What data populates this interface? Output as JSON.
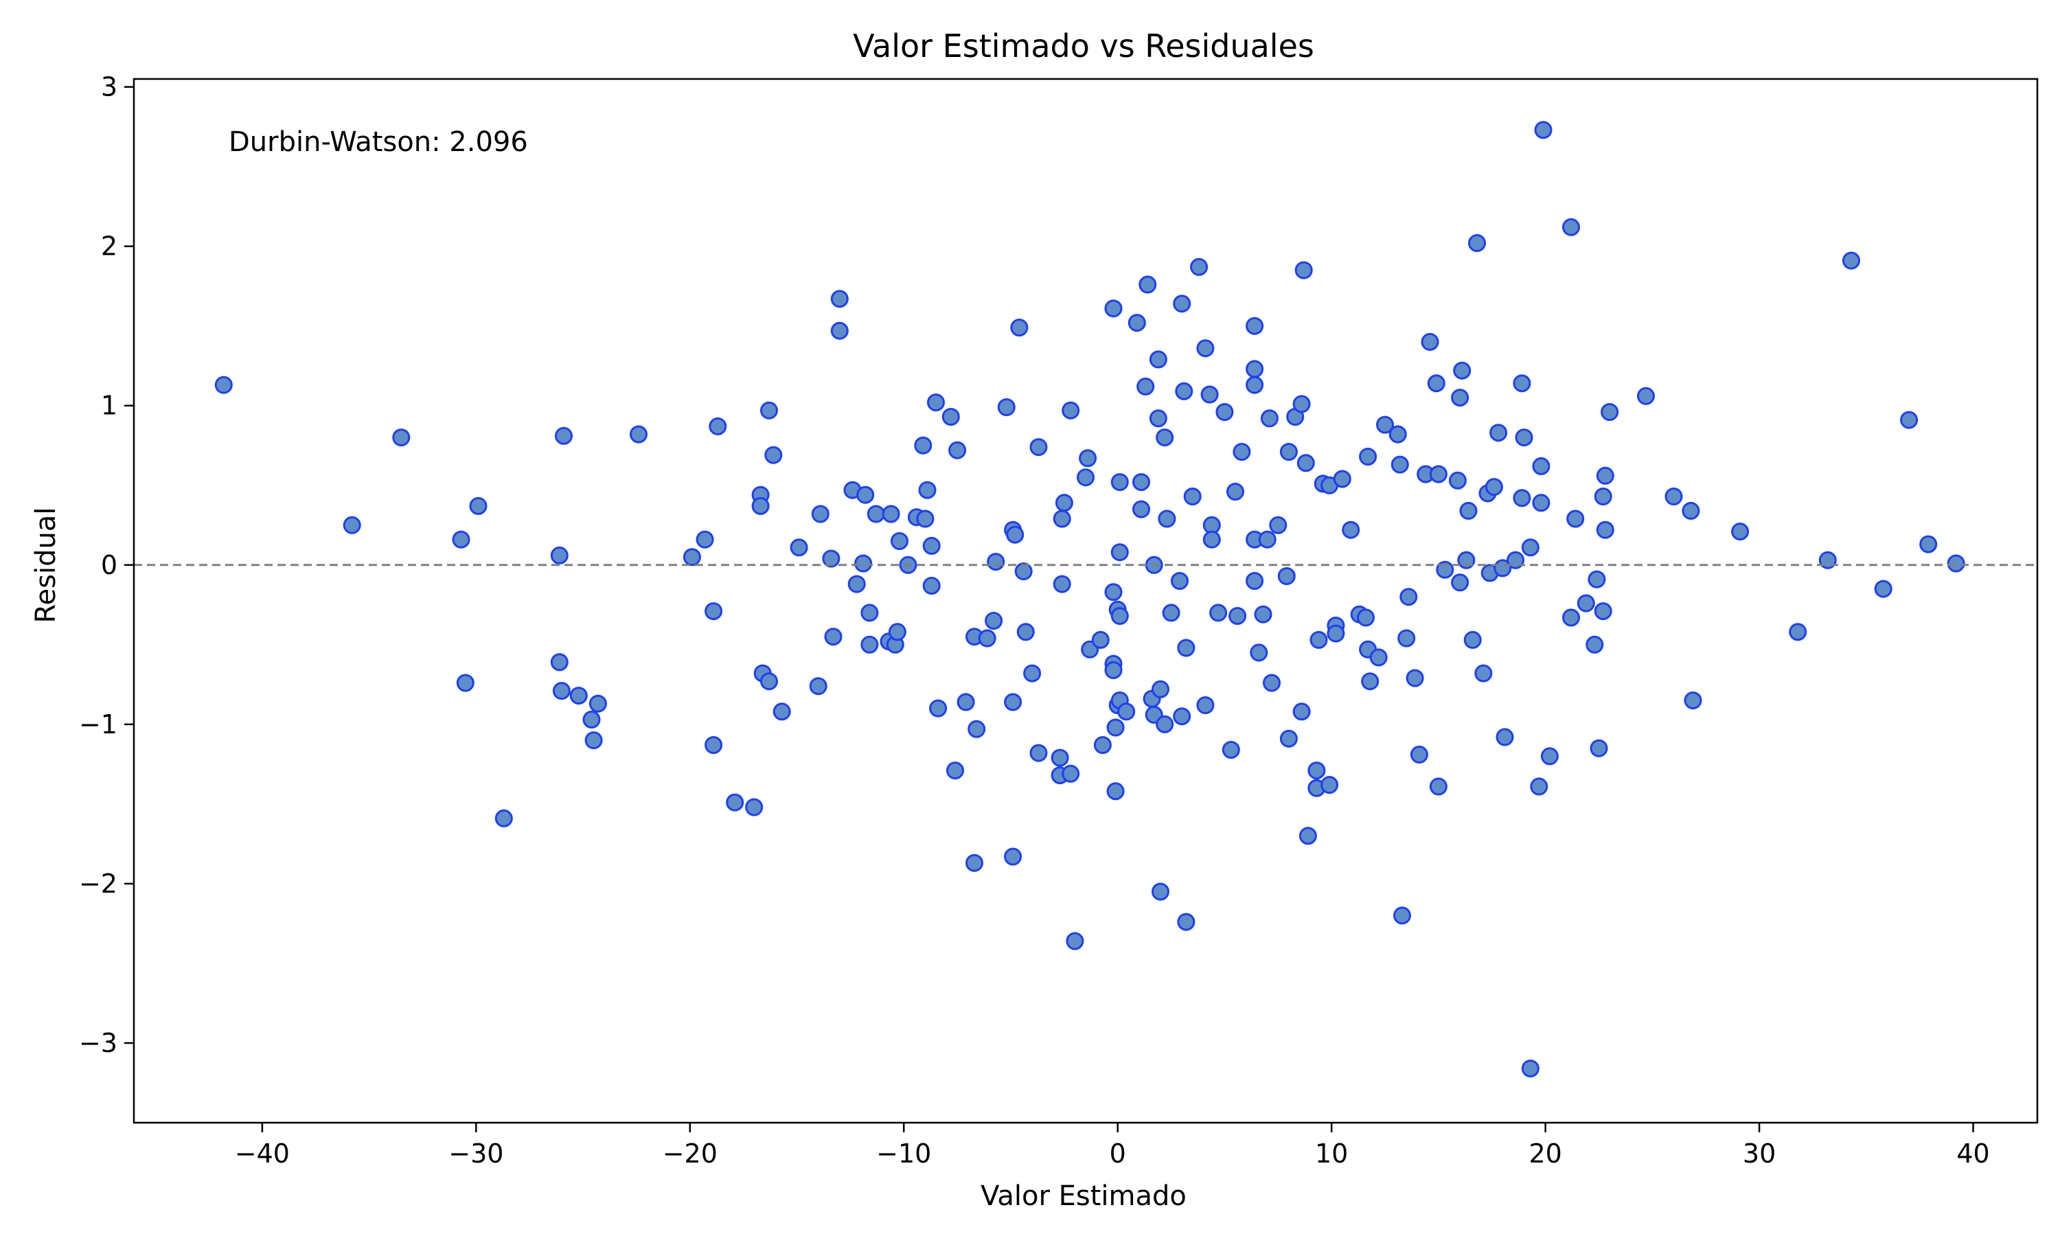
{
  "chart_data": {
    "type": "scatter",
    "title": "Valor Estimado vs Residuales",
    "xlabel": "Valor Estimado",
    "ylabel": "Residual",
    "xlim": [
      -46,
      43
    ],
    "ylim": [
      -3.5,
      3.05
    ],
    "xticks": [
      -40,
      -30,
      -20,
      -10,
      0,
      10,
      20,
      30,
      40
    ],
    "xtick_labels": [
      "−40",
      "−30",
      "−20",
      "−10",
      "0",
      "10",
      "20",
      "30",
      "40"
    ],
    "yticks": [
      -3,
      -2,
      -1,
      0,
      1,
      2,
      3
    ],
    "ytick_labels": [
      "−3",
      "−2",
      "−1",
      "0",
      "1",
      "2",
      "3"
    ],
    "reference_line": {
      "y": 0,
      "style": "dashed",
      "color": "#808080"
    },
    "annotation": "Durbin-Watson: 2.096",
    "grid": false,
    "marker": {
      "face_color": "#5f8dc8",
      "edge_color": "#1e3ff5"
    },
    "points": [
      {
        "x": -41.8,
        "y": 1.13
      },
      {
        "x": -35.8,
        "y": 0.25
      },
      {
        "x": -33.5,
        "y": 0.8
      },
      {
        "x": -30.7,
        "y": 0.16
      },
      {
        "x": -30.5,
        "y": -0.74
      },
      {
        "x": -29.9,
        "y": 0.37
      },
      {
        "x": -28.7,
        "y": -1.59
      },
      {
        "x": -26.1,
        "y": 0.06
      },
      {
        "x": -26.1,
        "y": -0.61
      },
      {
        "x": -26.0,
        "y": -0.79
      },
      {
        "x": -25.9,
        "y": 0.81
      },
      {
        "x": -25.2,
        "y": -0.82
      },
      {
        "x": -24.6,
        "y": -0.97
      },
      {
        "x": -24.5,
        "y": -1.1
      },
      {
        "x": -24.3,
        "y": -0.87
      },
      {
        "x": -22.4,
        "y": 0.82
      },
      {
        "x": -19.9,
        "y": 0.05
      },
      {
        "x": -19.3,
        "y": 0.16
      },
      {
        "x": -18.9,
        "y": -0.29
      },
      {
        "x": -18.9,
        "y": -1.13
      },
      {
        "x": -18.7,
        "y": 0.87
      },
      {
        "x": -17.9,
        "y": -1.49
      },
      {
        "x": -17.0,
        "y": -1.52
      },
      {
        "x": -16.7,
        "y": 0.44
      },
      {
        "x": -16.7,
        "y": 0.37
      },
      {
        "x": -16.6,
        "y": -0.68
      },
      {
        "x": -16.3,
        "y": -0.73
      },
      {
        "x": -16.3,
        "y": 0.97
      },
      {
        "x": -16.1,
        "y": 0.69
      },
      {
        "x": -15.7,
        "y": -0.92
      },
      {
        "x": -14.9,
        "y": 0.11
      },
      {
        "x": -14.0,
        "y": -0.76
      },
      {
        "x": -13.9,
        "y": 0.32
      },
      {
        "x": -13.4,
        "y": 0.04
      },
      {
        "x": -13.3,
        "y": -0.45
      },
      {
        "x": -13.0,
        "y": 1.67
      },
      {
        "x": -13.0,
        "y": 1.47
      },
      {
        "x": -12.4,
        "y": 0.47
      },
      {
        "x": -12.2,
        "y": -0.12
      },
      {
        "x": -11.9,
        "y": 0.01
      },
      {
        "x": -11.8,
        "y": 0.44
      },
      {
        "x": -11.6,
        "y": -0.3
      },
      {
        "x": -11.6,
        "y": -0.5
      },
      {
        "x": -11.3,
        "y": 0.32
      },
      {
        "x": -10.7,
        "y": -0.48
      },
      {
        "x": -10.6,
        "y": 0.32
      },
      {
        "x": -10.4,
        "y": -0.5
      },
      {
        "x": -10.3,
        "y": -0.42
      },
      {
        "x": -10.2,
        "y": 0.15
      },
      {
        "x": -9.8,
        "y": 0.0
      },
      {
        "x": -9.4,
        "y": 0.3
      },
      {
        "x": -9.1,
        "y": 0.75
      },
      {
        "x": -9.0,
        "y": 0.29
      },
      {
        "x": -8.9,
        "y": 0.47
      },
      {
        "x": -8.7,
        "y": 0.12
      },
      {
        "x": -8.7,
        "y": -0.13
      },
      {
        "x": -8.5,
        "y": 1.02
      },
      {
        "x": -8.4,
        "y": -0.9
      },
      {
        "x": -7.8,
        "y": 0.93
      },
      {
        "x": -7.6,
        "y": -1.29
      },
      {
        "x": -7.5,
        "y": 0.72
      },
      {
        "x": -7.1,
        "y": -0.86
      },
      {
        "x": -6.7,
        "y": -0.45
      },
      {
        "x": -6.7,
        "y": -1.87
      },
      {
        "x": -6.6,
        "y": -1.03
      },
      {
        "x": -6.1,
        "y": -0.46
      },
      {
        "x": -5.8,
        "y": -0.35
      },
      {
        "x": -5.7,
        "y": 0.02
      },
      {
        "x": -5.2,
        "y": 0.99
      },
      {
        "x": -4.9,
        "y": 0.22
      },
      {
        "x": -4.9,
        "y": -0.86
      },
      {
        "x": -4.9,
        "y": -1.83
      },
      {
        "x": -4.8,
        "y": 0.19
      },
      {
        "x": -4.6,
        "y": 1.49
      },
      {
        "x": -4.4,
        "y": -0.04
      },
      {
        "x": -4.3,
        "y": -0.42
      },
      {
        "x": -4.0,
        "y": -0.68
      },
      {
        "x": -3.7,
        "y": -1.18
      },
      {
        "x": -3.7,
        "y": 0.74
      },
      {
        "x": -2.7,
        "y": -1.21
      },
      {
        "x": -2.7,
        "y": -1.32
      },
      {
        "x": -2.6,
        "y": 0.29
      },
      {
        "x": -2.6,
        "y": -0.12
      },
      {
        "x": -2.5,
        "y": 0.39
      },
      {
        "x": -2.2,
        "y": 0.97
      },
      {
        "x": -2.2,
        "y": -1.31
      },
      {
        "x": -2.0,
        "y": -2.36
      },
      {
        "x": -1.5,
        "y": 0.55
      },
      {
        "x": -1.4,
        "y": 0.67
      },
      {
        "x": -1.3,
        "y": -0.53
      },
      {
        "x": -0.8,
        "y": -0.47
      },
      {
        "x": -0.7,
        "y": -1.13
      },
      {
        "x": -0.2,
        "y": 1.61
      },
      {
        "x": -0.2,
        "y": -0.62
      },
      {
        "x": -0.2,
        "y": -0.66
      },
      {
        "x": -0.2,
        "y": -0.17
      },
      {
        "x": -0.1,
        "y": -1.42
      },
      {
        "x": -0.1,
        "y": -1.02
      },
      {
        "x": 0.0,
        "y": -0.88
      },
      {
        "x": 0.0,
        "y": -0.28
      },
      {
        "x": 0.1,
        "y": 0.52
      },
      {
        "x": 0.1,
        "y": 0.08
      },
      {
        "x": 0.1,
        "y": -0.85
      },
      {
        "x": 0.1,
        "y": -0.32
      },
      {
        "x": 0.4,
        "y": -0.92
      },
      {
        "x": 0.9,
        "y": 1.52
      },
      {
        "x": 1.1,
        "y": 0.52
      },
      {
        "x": 1.1,
        "y": 0.35
      },
      {
        "x": 1.3,
        "y": 1.12
      },
      {
        "x": 1.4,
        "y": 1.76
      },
      {
        "x": 1.6,
        "y": -0.84
      },
      {
        "x": 1.7,
        "y": 0.0
      },
      {
        "x": 1.7,
        "y": -0.94
      },
      {
        "x": 1.9,
        "y": 1.29
      },
      {
        "x": 1.9,
        "y": 0.92
      },
      {
        "x": 2.0,
        "y": -0.78
      },
      {
        "x": 2.0,
        "y": -2.05
      },
      {
        "x": 2.2,
        "y": -1.0
      },
      {
        "x": 2.2,
        "y": 0.8
      },
      {
        "x": 2.3,
        "y": 0.29
      },
      {
        "x": 2.5,
        "y": -0.3
      },
      {
        "x": 2.9,
        "y": -0.1
      },
      {
        "x": 3.0,
        "y": 1.64
      },
      {
        "x": 3.0,
        "y": -0.95
      },
      {
        "x": 3.1,
        "y": 1.09
      },
      {
        "x": 3.2,
        "y": -0.52
      },
      {
        "x": 3.2,
        "y": -2.24
      },
      {
        "x": 3.5,
        "y": 0.43
      },
      {
        "x": 3.8,
        "y": 1.87
      },
      {
        "x": 4.1,
        "y": 1.36
      },
      {
        "x": 4.1,
        "y": -0.88
      },
      {
        "x": 4.3,
        "y": 1.07
      },
      {
        "x": 4.4,
        "y": 0.25
      },
      {
        "x": 4.4,
        "y": 0.16
      },
      {
        "x": 4.7,
        "y": -0.3
      },
      {
        "x": 5.0,
        "y": 0.96
      },
      {
        "x": 5.3,
        "y": -1.16
      },
      {
        "x": 5.5,
        "y": 0.46
      },
      {
        "x": 5.6,
        "y": -0.32
      },
      {
        "x": 5.8,
        "y": 0.71
      },
      {
        "x": 6.4,
        "y": 1.5
      },
      {
        "x": 6.4,
        "y": 1.23
      },
      {
        "x": 6.4,
        "y": 1.13
      },
      {
        "x": 6.4,
        "y": 0.16
      },
      {
        "x": 6.4,
        "y": -0.1
      },
      {
        "x": 6.6,
        "y": -0.55
      },
      {
        "x": 6.8,
        "y": -0.31
      },
      {
        "x": 7.0,
        "y": 0.16
      },
      {
        "x": 7.1,
        "y": 0.92
      },
      {
        "x": 7.2,
        "y": -0.74
      },
      {
        "x": 7.5,
        "y": 0.25
      },
      {
        "x": 7.9,
        "y": -0.07
      },
      {
        "x": 8.0,
        "y": 0.71
      },
      {
        "x": 8.0,
        "y": -1.09
      },
      {
        "x": 8.3,
        "y": 0.93
      },
      {
        "x": 8.6,
        "y": 1.01
      },
      {
        "x": 8.6,
        "y": -0.92
      },
      {
        "x": 8.7,
        "y": 1.85
      },
      {
        "x": 8.8,
        "y": 0.64
      },
      {
        "x": 8.9,
        "y": -1.7
      },
      {
        "x": 9.3,
        "y": -1.29
      },
      {
        "x": 9.3,
        "y": -1.4
      },
      {
        "x": 9.4,
        "y": -0.47
      },
      {
        "x": 9.6,
        "y": 0.51
      },
      {
        "x": 9.9,
        "y": 0.5
      },
      {
        "x": 9.9,
        "y": -1.38
      },
      {
        "x": 10.2,
        "y": -0.38
      },
      {
        "x": 10.2,
        "y": -0.43
      },
      {
        "x": 10.5,
        "y": 0.54
      },
      {
        "x": 10.9,
        "y": 0.22
      },
      {
        "x": 11.3,
        "y": -0.31
      },
      {
        "x": 11.6,
        "y": -0.33
      },
      {
        "x": 11.7,
        "y": 0.68
      },
      {
        "x": 11.7,
        "y": -0.53
      },
      {
        "x": 11.8,
        "y": -0.73
      },
      {
        "x": 12.2,
        "y": -0.58
      },
      {
        "x": 12.5,
        "y": 0.88
      },
      {
        "x": 13.1,
        "y": 0.82
      },
      {
        "x": 13.2,
        "y": 0.63
      },
      {
        "x": 13.3,
        "y": -2.2
      },
      {
        "x": 13.5,
        "y": -0.46
      },
      {
        "x": 13.6,
        "y": -0.2
      },
      {
        "x": 13.9,
        "y": -0.71
      },
      {
        "x": 14.1,
        "y": -1.19
      },
      {
        "x": 14.4,
        "y": 0.57
      },
      {
        "x": 14.6,
        "y": 1.4
      },
      {
        "x": 14.9,
        "y": 1.14
      },
      {
        "x": 15.0,
        "y": 0.57
      },
      {
        "x": 15.0,
        "y": -1.39
      },
      {
        "x": 15.3,
        "y": -0.03
      },
      {
        "x": 15.9,
        "y": 0.53
      },
      {
        "x": 16.0,
        "y": 1.05
      },
      {
        "x": 16.1,
        "y": 1.22
      },
      {
        "x": 16.0,
        "y": -0.11
      },
      {
        "x": 16.3,
        "y": 0.03
      },
      {
        "x": 16.4,
        "y": 0.34
      },
      {
        "x": 16.6,
        "y": -0.47
      },
      {
        "x": 16.8,
        "y": 2.02
      },
      {
        "x": 17.1,
        "y": -0.68
      },
      {
        "x": 17.3,
        "y": 0.45
      },
      {
        "x": 17.4,
        "y": -0.05
      },
      {
        "x": 17.6,
        "y": 0.49
      },
      {
        "x": 17.8,
        "y": 0.83
      },
      {
        "x": 18.0,
        "y": -0.02
      },
      {
        "x": 18.1,
        "y": -1.08
      },
      {
        "x": 18.6,
        "y": 0.03
      },
      {
        "x": 18.9,
        "y": 1.14
      },
      {
        "x": 18.9,
        "y": 0.42
      },
      {
        "x": 19.0,
        "y": 0.8
      },
      {
        "x": 19.3,
        "y": 0.11
      },
      {
        "x": 19.3,
        "y": -3.16
      },
      {
        "x": 19.7,
        "y": -1.39
      },
      {
        "x": 19.8,
        "y": 0.39
      },
      {
        "x": 19.8,
        "y": 0.62
      },
      {
        "x": 19.9,
        "y": 2.73
      },
      {
        "x": 20.2,
        "y": -1.2
      },
      {
        "x": 21.2,
        "y": 2.12
      },
      {
        "x": 21.2,
        "y": -0.33
      },
      {
        "x": 21.4,
        "y": 0.29
      },
      {
        "x": 21.9,
        "y": -0.24
      },
      {
        "x": 22.3,
        "y": -0.5
      },
      {
        "x": 22.4,
        "y": -0.09
      },
      {
        "x": 22.5,
        "y": -1.15
      },
      {
        "x": 22.7,
        "y": 0.43
      },
      {
        "x": 22.7,
        "y": -0.29
      },
      {
        "x": 22.8,
        "y": 0.56
      },
      {
        "x": 22.8,
        "y": 0.22
      },
      {
        "x": 23.0,
        "y": 0.96
      },
      {
        "x": 24.7,
        "y": 1.06
      },
      {
        "x": 26.0,
        "y": 0.43
      },
      {
        "x": 26.8,
        "y": 0.34
      },
      {
        "x": 26.9,
        "y": -0.85
      },
      {
        "x": 29.1,
        "y": 0.21
      },
      {
        "x": 31.8,
        "y": -0.42
      },
      {
        "x": 33.2,
        "y": 0.03
      },
      {
        "x": 34.3,
        "y": 1.91
      },
      {
        "x": 35.8,
        "y": -0.15
      },
      {
        "x": 37.0,
        "y": 0.91
      },
      {
        "x": 37.9,
        "y": 0.13
      },
      {
        "x": 39.2,
        "y": 0.01
      }
    ]
  }
}
